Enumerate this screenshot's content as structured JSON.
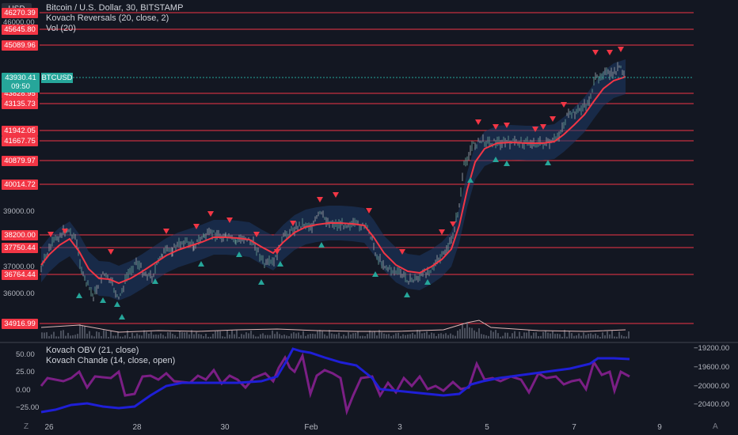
{
  "legend": {
    "line1": "Bitcoin / U.S. Dollar, 30, BITSTAMP",
    "line2": "Kovach Reversals (20, close, 2)",
    "line3": "Vol (20)"
  },
  "sub_legend": {
    "line1": "Kovach OBV (21, close)",
    "line2": "Kovach Chande (14, close, open)"
  },
  "currency": "USD",
  "last_price": {
    "value": "43930.41",
    "countdown": "09:50",
    "symbol": "BTCUSD"
  },
  "levels": [
    "46270.39",
    "45645.80",
    "45089.96",
    "43828.95",
    "43135.73",
    "41942.05",
    "41667.75",
    "40879.97",
    "40014.72",
    "38200.00",
    "37750.44",
    "36764.44",
    "34916.99"
  ],
  "price_ticks": [
    "46000.00",
    "39000.00",
    "37000.00",
    "36000.00"
  ],
  "osc_ticks": [
    "50.00",
    "25.00",
    "0.00",
    "−25.00"
  ],
  "obv_ticks": [
    "−19200.00",
    "−19600.00",
    "−20000.00",
    "−20400.00"
  ],
  "x_ticks": [
    "26",
    "28",
    "30",
    "Feb",
    "3",
    "5",
    "7",
    "9"
  ],
  "corner": {
    "left": "Z",
    "right": "A"
  },
  "colors": {
    "bg": "#131722",
    "level": "#f23645",
    "ma": "#f23645",
    "band": "#1e3a68",
    "up": "#26a69a",
    "down": "#f23645",
    "obv": "#1f1fd6",
    "chande": "#7b1f85"
  },
  "chart_data": {
    "type": "line",
    "title": "Bitcoin / U.S. Dollar, 30, BITSTAMP",
    "series": [
      {
        "name": "Kovach Reversals (20, close, 2)",
        "x": [
          "26",
          "27",
          "28",
          "29",
          "30",
          "31",
          "Feb",
          "2",
          "3",
          "4",
          "5",
          "6",
          "7",
          "8"
        ],
        "values": [
          37400,
          37100,
          36600,
          37200,
          37700,
          37500,
          38200,
          38100,
          37000,
          37300,
          41500,
          41600,
          42000,
          44200
        ]
      },
      {
        "name": "Kovach OBV (21, close)",
        "values": [
          -20400,
          -20300,
          -20250,
          -20050,
          -20000,
          -19800,
          -19350,
          -19450,
          -20050,
          -20050,
          -19850,
          -19750,
          -19550,
          -19500
        ]
      },
      {
        "name": "Kovach Chande (14, close, open)",
        "values": [
          20,
          25,
          -5,
          20,
          30,
          15,
          60,
          5,
          15,
          10,
          10,
          15,
          5,
          25
        ]
      }
    ],
    "ylim": [
      34500,
      46500
    ]
  }
}
